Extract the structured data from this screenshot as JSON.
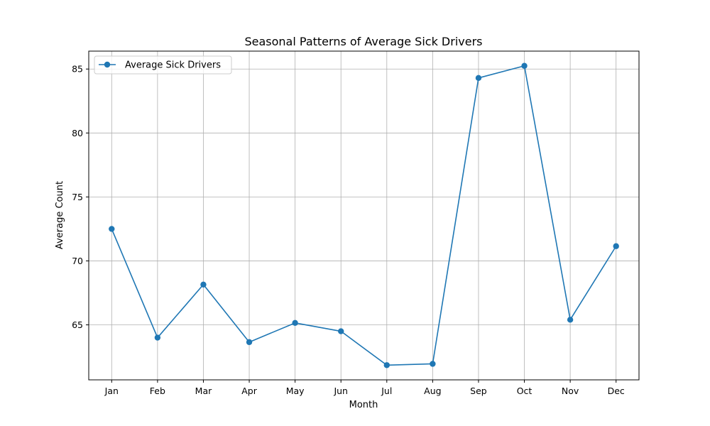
{
  "chart_data": {
    "type": "line",
    "title": "Seasonal Patterns of Average Sick Drivers",
    "xlabel": "Month",
    "ylabel": "Average Count",
    "categories": [
      "Jan",
      "Feb",
      "Mar",
      "Apr",
      "May",
      "Jun",
      "Jul",
      "Aug",
      "Sep",
      "Oct",
      "Nov",
      "Dec"
    ],
    "series": [
      {
        "name": "Average Sick Drivers",
        "values": [
          72.5,
          64.0,
          68.15,
          63.65,
          65.15,
          64.5,
          61.85,
          61.95,
          84.3,
          85.25,
          65.4,
          71.15
        ],
        "color": "#1f77b4",
        "marker": "circle"
      }
    ],
    "ylim": [
      60.7,
      86.4
    ],
    "yticks": [
      65,
      70,
      75,
      80,
      85
    ],
    "grid": true,
    "legend": "top-left"
  }
}
